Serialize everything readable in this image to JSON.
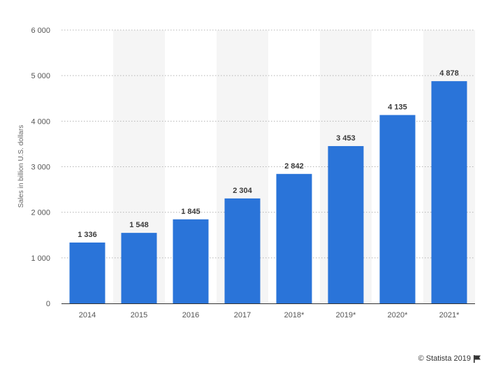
{
  "chart_data": {
    "type": "bar",
    "categories": [
      "2014",
      "2015",
      "2016",
      "2017",
      "2018*",
      "2019*",
      "2020*",
      "2021*"
    ],
    "values": [
      1336,
      1548,
      1845,
      2304,
      2842,
      3453,
      4135,
      4878
    ],
    "value_labels": [
      "1 336",
      "1 548",
      "1 845",
      "2 304",
      "2 842",
      "3 453",
      "4 135",
      "4 878"
    ],
    "ylabel": "Sales in billion U.S. dollars",
    "xlabel": "",
    "ylim": [
      0,
      6000
    ],
    "yticks": [
      0,
      1000,
      2000,
      3000,
      4000,
      5000,
      6000
    ],
    "ytick_labels": [
      "0",
      "1 000",
      "2 000",
      "3 000",
      "4 000",
      "5 000",
      "6 000"
    ],
    "grid": true,
    "bar_color": "#2a74d9",
    "band_color": "#f5f5f5"
  },
  "footer": {
    "credit": "© Statista 2019",
    "flag_icon": "flag-icon"
  }
}
